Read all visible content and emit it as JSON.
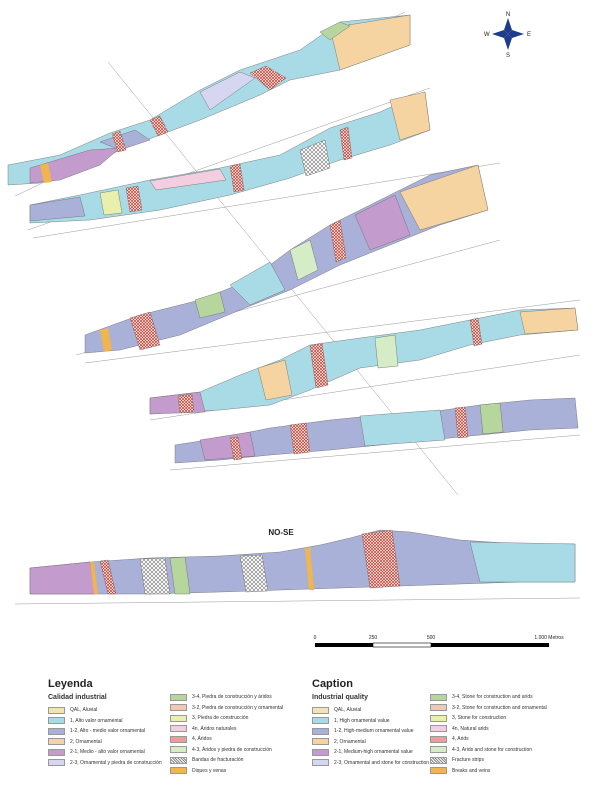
{
  "section_title": "NO-SE",
  "compass": {
    "n": "N",
    "s": "S",
    "e": "E",
    "w": "W"
  },
  "scale_bar": {
    "ticks": [
      "0",
      "250",
      "500",
      "1.000 Metros"
    ]
  },
  "legend_es": {
    "title": "Leyenda",
    "subtitle": "Calidad industrial",
    "col1": [
      {
        "label": "QAL, Aluvial",
        "color": "#f1e3b4"
      },
      {
        "label": "1, Alto valor ornamental",
        "color": "#a9dbe6"
      },
      {
        "label": "1-2, Alto - medio valor ornamental",
        "color": "#aab1d8"
      },
      {
        "label": "2, Ornamental",
        "color": "#f6d4a2"
      },
      {
        "label": "2-1, Medio - alto valor ornamental",
        "color": "#c49bcd"
      },
      {
        "label": "2-3, Ornamental y piedra de construcción",
        "color": "#d7d6f0"
      }
    ],
    "col2": [
      {
        "label": "3-4, Piedra de construcción y áridos",
        "color": "#b6d69e"
      },
      {
        "label": "3-2, Piedra de construcción y ornamental",
        "color": "#f4c6b5"
      },
      {
        "label": "3, Piedra de construcción",
        "color": "#e9f0ad"
      },
      {
        "label": "4n, Áridos naturales",
        "color": "#f3cde0"
      },
      {
        "label": "4, Áridos",
        "color": "#f09a9e"
      },
      {
        "label": "4-3, Áridos y piedra de construcción",
        "color": "#d5ecc6"
      },
      {
        "label": "Bandas de fracturación",
        "color": "hatch"
      },
      {
        "label": "Diques y venas",
        "color": "#f0b54e"
      }
    ]
  },
  "legend_en": {
    "title": "Caption",
    "subtitle": "Industrial quality",
    "col1": [
      {
        "label": "QAL, Aluvial",
        "color": "#f1e3b4"
      },
      {
        "label": "1, High ornamental value",
        "color": "#a9dbe6"
      },
      {
        "label": "1-2, High-medium ornamental value",
        "color": "#aab1d8"
      },
      {
        "label": "2, Ornamental",
        "color": "#f6d4a2"
      },
      {
        "label": "2-1, Medium-high ornamental value",
        "color": "#c49bcd"
      },
      {
        "label": "2-3, Ornamental and stone for construction",
        "color": "#d7d6f0"
      }
    ],
    "col2": [
      {
        "label": "3-4, Stone for construction and arids",
        "color": "#b6d69e"
      },
      {
        "label": "3-2, Stone for construction and ornamental",
        "color": "#f4c6b5"
      },
      {
        "label": "3, Stone for construction",
        "color": "#e9f0ad"
      },
      {
        "label": "4n, Natural arids",
        "color": "#f3cde0"
      },
      {
        "label": "4, Arids",
        "color": "#f09a9e"
      },
      {
        "label": "4-3, Arids and stone for construction",
        "color": "#d5ecc6"
      },
      {
        "label": "Fracture strips",
        "color": "hatch"
      },
      {
        "label": "Breaks and veins",
        "color": "#f0b54e"
      }
    ]
  }
}
